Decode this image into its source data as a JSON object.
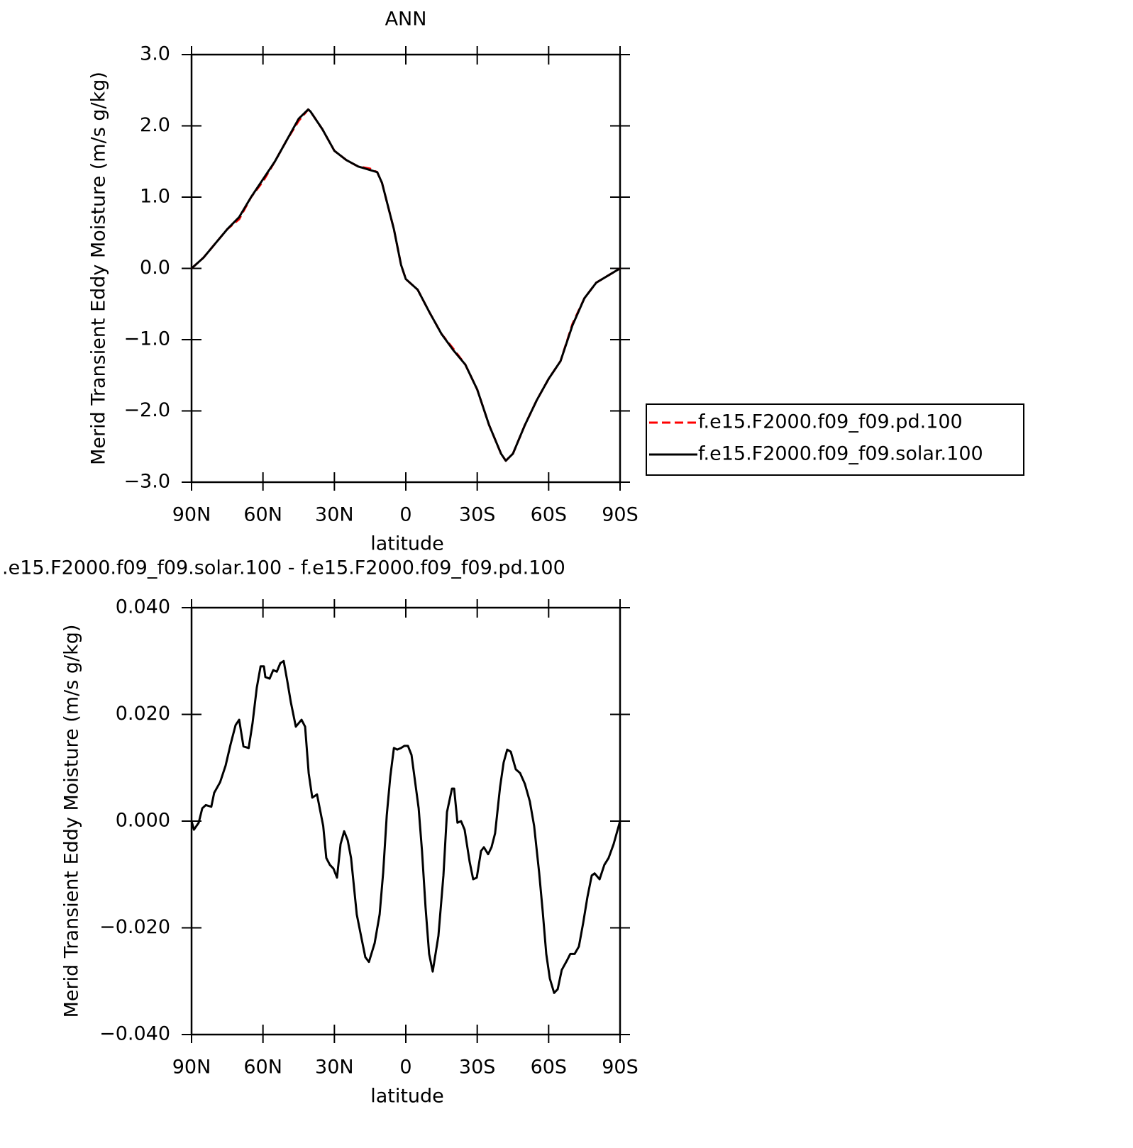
{
  "chart_data": [
    {
      "type": "line",
      "title": "ANN",
      "xlabel": "latitude",
      "ylabel": "Merid Transient Eddy Moisture (m/s g/kg)",
      "x": [
        90,
        85,
        80,
        75,
        70,
        65,
        60,
        55,
        50,
        45,
        41,
        40,
        35,
        30,
        25,
        20,
        15,
        12,
        10,
        5,
        2,
        0,
        -5,
        -10,
        -15,
        -20,
        -25,
        -30,
        -35,
        -40,
        -42,
        -45,
        -50,
        -55,
        -60,
        -65,
        -70,
        -75,
        -80,
        -85,
        -90
      ],
      "series": [
        {
          "name": "f.e15.F2000.f09_f09.pd.100",
          "color": "#ff0000",
          "dashed": true,
          "values": [
            0,
            0.15,
            0.35,
            0.55,
            0.69,
            1.0,
            1.22,
            1.5,
            1.8,
            2.07,
            2.23,
            2.2,
            1.95,
            1.65,
            1.52,
            1.43,
            1.4,
            1.35,
            1.2,
            0.55,
            0.05,
            -0.15,
            -0.3,
            -0.62,
            -0.92,
            -1.13,
            -1.35,
            -1.7,
            -2.2,
            -2.6,
            -2.7,
            -2.6,
            -2.2,
            -1.85,
            -1.55,
            -1.3,
            -0.78,
            -0.42,
            -0.2,
            -0.1,
            0
          ]
        },
        {
          "name": "f.e15.F2000.f09_f09.solar.100",
          "color": "#000000",
          "dashed": false,
          "values": [
            0,
            0.15,
            0.35,
            0.55,
            0.72,
            1.0,
            1.25,
            1.5,
            1.8,
            2.1,
            2.23,
            2.2,
            1.95,
            1.65,
            1.52,
            1.43,
            1.38,
            1.35,
            1.2,
            0.55,
            0.05,
            -0.15,
            -0.3,
            -0.62,
            -0.92,
            -1.15,
            -1.35,
            -1.7,
            -2.2,
            -2.6,
            -2.7,
            -2.6,
            -2.2,
            -1.85,
            -1.55,
            -1.3,
            -0.8,
            -0.42,
            -0.2,
            -0.1,
            0
          ]
        }
      ],
      "xlim": [
        90,
        -90
      ],
      "xticks": [
        {
          "value": 90,
          "label": "90N"
        },
        {
          "value": 60,
          "label": "60N"
        },
        {
          "value": 30,
          "label": "30N"
        },
        0,
        {
          "value": -30,
          "label": "30S"
        },
        {
          "value": -60,
          "label": "60S"
        },
        {
          "value": -90,
          "label": "90S"
        }
      ],
      "ylim": [
        -3,
        3
      ],
      "yticks": [
        {
          "value": 3,
          "label": "3.0"
        },
        {
          "value": 2,
          "label": "2.0"
        },
        {
          "value": 1,
          "label": "1.0"
        },
        {
          "value": 0,
          "label": "0.0"
        },
        {
          "value": -1,
          "label": "−1.0"
        },
        {
          "value": -2,
          "label": "−2.0"
        },
        {
          "value": -3,
          "label": "−3.0"
        }
      ],
      "legend": "right"
    },
    {
      "type": "line",
      "title": ".e15.F2000.f09_f09.solar.100 - f.e15.F2000.f09_f09.pd.100",
      "xlabel": "latitude",
      "ylabel": "Merid Transient Eddy Moisture (m/s g/kg)",
      "x": [
        90,
        89,
        87,
        85.5,
        84,
        81.7,
        80.5,
        78,
        75.7,
        73.6,
        71.5,
        70,
        68.2,
        66,
        64.4,
        62.6,
        61,
        59.6,
        59,
        57.2,
        55.7,
        54.2,
        52.7,
        51.3,
        49.8,
        48.3,
        46.2,
        43.8,
        42.3,
        40.8,
        39.3,
        37.3,
        34.7,
        33.4,
        31.9,
        30.4,
        28.9,
        27.4,
        25.9,
        24.4,
        23,
        20.6,
        18.5,
        17,
        15.5,
        13.1,
        11,
        9.5,
        8,
        6.5,
        5,
        3.6,
        2,
        0.6,
        -0.9,
        -2.4,
        -5.4,
        -6.8,
        -8.3,
        -9.8,
        -11.3,
        -13.7,
        -15.8,
        -17.3,
        -19.4,
        -20.3,
        -21.7,
        -23.2,
        -24.7,
        -26.8,
        -28.3,
        -29.8,
        -31.6,
        -32.8,
        -34.6,
        -36,
        -37.5,
        -39.6,
        -41.1,
        -42.6,
        -44.1,
        -46.2,
        -48,
        -50,
        -52.1,
        -53.9,
        -56,
        -57.5,
        -59,
        -60.5,
        -62.3,
        -63.8,
        -65.5,
        -67.6,
        -69.1,
        -70.9,
        -72.7,
        -74.5,
        -76.3,
        -78.1,
        -79.3,
        -81.4,
        -83.4,
        -85.2,
        -87.3,
        -90
      ],
      "values": [
        0,
        -0.0016,
        -0.0003,
        0.0024,
        0.003,
        0.0027,
        0.0053,
        0.0073,
        0.0104,
        0.0144,
        0.018,
        0.019,
        0.014,
        0.0137,
        0.0183,
        0.025,
        0.029,
        0.029,
        0.027,
        0.0267,
        0.0283,
        0.028,
        0.0296,
        0.03,
        0.0263,
        0.0223,
        0.0177,
        0.019,
        0.0177,
        0.009,
        0.0044,
        0.005,
        -0.0009,
        -0.0069,
        -0.0082,
        -0.0089,
        -0.0106,
        -0.0043,
        -0.0019,
        -0.0036,
        -0.0069,
        -0.0175,
        -0.0222,
        -0.0255,
        -0.0264,
        -0.0229,
        -0.0175,
        -0.0096,
        0.0011,
        0.0084,
        0.0137,
        0.0134,
        0.0137,
        0.0141,
        0.0141,
        0.0124,
        0.0024,
        -0.0056,
        -0.0162,
        -0.0249,
        -0.0282,
        -0.0215,
        -0.0102,
        0.0017,
        0.0061,
        0.0061,
        -0.0003,
        0,
        -0.0016,
        -0.0076,
        -0.0109,
        -0.0106,
        -0.0056,
        -0.0049,
        -0.0062,
        -0.0049,
        -0.0023,
        0.0064,
        0.011,
        0.0134,
        0.013,
        0.0097,
        0.009,
        0.007,
        0.0037,
        -0.0009,
        -0.0096,
        -0.0169,
        -0.0249,
        -0.0295,
        -0.0322,
        -0.0315,
        -0.0279,
        -0.0262,
        -0.0249,
        -0.0249,
        -0.0235,
        -0.0191,
        -0.0142,
        -0.0102,
        -0.0098,
        -0.0109,
        -0.0082,
        -0.0069,
        -0.0043,
        0
      ],
      "color": "#000000",
      "xlim": [
        90,
        -90
      ],
      "xticks": [
        {
          "value": 90,
          "label": "90N"
        },
        {
          "value": 60,
          "label": "60N"
        },
        {
          "value": 30,
          "label": "30N"
        },
        0,
        {
          "value": -30,
          "label": "30S"
        },
        {
          "value": -60,
          "label": "60S"
        },
        {
          "value": -90,
          "label": "90S"
        }
      ],
      "ylim": [
        -0.04,
        0.04
      ],
      "yticks": [
        {
          "value": 0.04,
          "label": "0.040"
        },
        {
          "value": 0.02,
          "label": "0.020"
        },
        {
          "value": 0,
          "label": "0.000"
        },
        {
          "value": -0.02,
          "label": "−0.020"
        },
        {
          "value": -0.04,
          "label": "−0.040"
        }
      ]
    }
  ]
}
